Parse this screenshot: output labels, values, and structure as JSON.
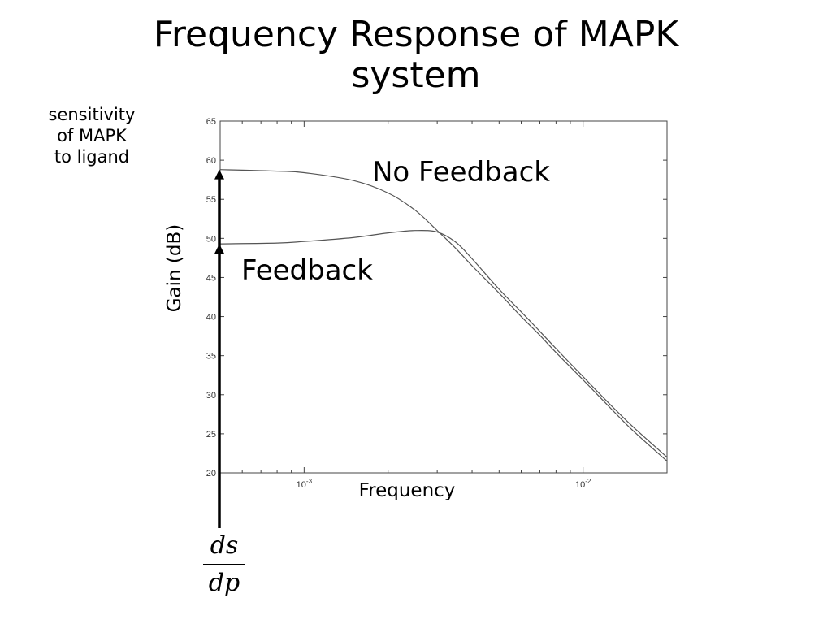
{
  "slide": {
    "title_line1": "Frequency Response of MAPK",
    "title_line2": "system",
    "side_note_line1": "sensitivity",
    "side_note_line2": "of MAPK",
    "side_note_line3": "to ligand",
    "fraction_numerator": "ds",
    "fraction_denominator": "dp"
  },
  "chart_data": {
    "type": "line",
    "title": "",
    "xlabel": "Frequency",
    "ylabel": "Gain (dB)",
    "x_scale": "log",
    "xlim": [
      0.0005,
      0.02
    ],
    "ylim": [
      20,
      65
    ],
    "y_ticks": [
      20,
      25,
      30,
      35,
      40,
      45,
      50,
      55,
      60,
      65
    ],
    "x_tick_labels": [
      {
        "base": "10",
        "exp": "-3",
        "value": 0.001
      },
      {
        "base": "10",
        "exp": "-2",
        "value": 0.01
      }
    ],
    "grid": false,
    "series": [
      {
        "name": "No Feedback",
        "x": [
          0.0005,
          0.0008,
          0.001,
          0.0015,
          0.002,
          0.0025,
          0.003,
          0.0035,
          0.004,
          0.005,
          0.006,
          0.007,
          0.008,
          0.01,
          0.012,
          0.015,
          0.02
        ],
        "y": [
          58.8,
          58.6,
          58.4,
          57.4,
          55.8,
          53.6,
          51.0,
          48.7,
          46.5,
          43.0,
          40.0,
          37.6,
          35.4,
          31.9,
          29.0,
          25.5,
          21.5
        ]
      },
      {
        "name": "Feedback",
        "x": [
          0.0005,
          0.0008,
          0.001,
          0.0015,
          0.002,
          0.0025,
          0.003,
          0.0035,
          0.004,
          0.005,
          0.006,
          0.007,
          0.008,
          0.01,
          0.012,
          0.015,
          0.02
        ],
        "y": [
          49.3,
          49.4,
          49.6,
          50.1,
          50.7,
          51.0,
          50.8,
          49.5,
          47.4,
          43.5,
          40.6,
          38.1,
          35.9,
          32.3,
          29.4,
          26.0,
          22.0
        ]
      }
    ]
  },
  "colors": {
    "curve": "#555555",
    "arrow": "#000000",
    "frame": "#444444"
  }
}
